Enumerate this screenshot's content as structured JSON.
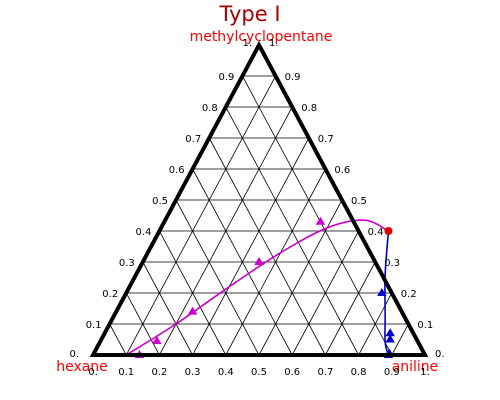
{
  "chart_data": {
    "type": "ternary",
    "title": "Type I",
    "vertex_labels": {
      "top": "methylcyclopentane",
      "left": "hexane",
      "right": "aniline"
    },
    "ticks": [
      {
        "value": 0.1,
        "label": "0.1"
      },
      {
        "value": 0.2,
        "label": "0.2"
      },
      {
        "value": 0.3,
        "label": "0.3"
      },
      {
        "value": 0.4,
        "label": "0.4"
      },
      {
        "value": 0.5,
        "label": "0.5"
      },
      {
        "value": 0.6,
        "label": "0.6"
      },
      {
        "value": 0.7,
        "label": "0.7"
      },
      {
        "value": 0.8,
        "label": "0.8"
      },
      {
        "value": 0.9,
        "label": "0.9"
      }
    ],
    "corner_ticks": {
      "zero": "0.",
      "one": "1."
    },
    "grid": true,
    "colors": {
      "title": "#aa0000",
      "labels": "#ff0000",
      "left_branch": "#cc00cc",
      "right_branch": "#0000cc",
      "plait_point": "#dd0000"
    },
    "series": [
      {
        "branch": "left",
        "points": [
          {
            "aniline": 0.14,
            "methylcyclopentane": 0.0
          },
          {
            "aniline": 0.17,
            "methylcyclopentane": 0.045
          },
          {
            "aniline": 0.23,
            "methylcyclopentane": 0.14
          },
          {
            "aniline": 0.35,
            "methylcyclopentane": 0.3
          },
          {
            "aniline": 0.47,
            "methylcyclopentane": 0.43
          }
        ]
      },
      {
        "branch": "right",
        "points": [
          {
            "aniline": 0.77,
            "methylcyclopentane": 0.2
          },
          {
            "aniline": 0.86,
            "methylcyclopentane": 0.07
          },
          {
            "aniline": 0.87,
            "methylcyclopentane": 0.05
          },
          {
            "aniline": 0.89,
            "methylcyclopentane": 0.005
          },
          {
            "aniline": 0.89,
            "methylcyclopentane": 0.0
          }
        ]
      }
    ],
    "plait_point": {
      "aniline": 0.69,
      "methylcyclopentane": 0.4
    },
    "binodal_curve": [
      {
        "aniline": 0.1,
        "methylcyclopentane": 0.0
      },
      {
        "aniline": 0.2,
        "methylcyclopentane": 0.1
      },
      {
        "aniline": 0.3,
        "methylcyclopentane": 0.22
      },
      {
        "aniline": 0.4,
        "methylcyclopentane": 0.33
      },
      {
        "aniline": 0.5,
        "methylcyclopentane": 0.41
      },
      {
        "aniline": 0.6,
        "methylcyclopentane": 0.435
      },
      {
        "aniline": 0.69,
        "methylcyclopentane": 0.4
      },
      {
        "aniline": 0.75,
        "methylcyclopentane": 0.26
      },
      {
        "aniline": 0.82,
        "methylcyclopentane": 0.12
      },
      {
        "aniline": 0.86,
        "methylcyclopentane": 0.04
      },
      {
        "aniline": 0.89,
        "methylcyclopentane": 0.0
      }
    ]
  }
}
